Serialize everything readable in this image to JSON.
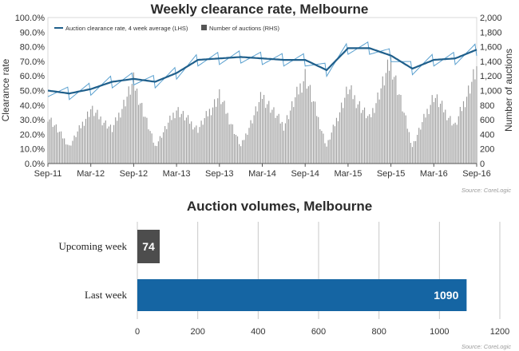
{
  "colors": {
    "line": "#1f5f8b",
    "line_raw": "#5aa0cf",
    "auction_bars": "#9a9a9a",
    "upcoming_bar": "#4d4d4d",
    "last_week_bar": "#1565a3"
  },
  "chart_data": [
    {
      "type": "line",
      "title": "Weekly clearance rate, Melbourne",
      "ylabel": "Clearance rate",
      "y2label": "Number of auctions",
      "x_ticks": [
        "Sep-11",
        "Mar-12",
        "Sep-12",
        "Mar-13",
        "Sep-13",
        "Mar-14",
        "Sep-14",
        "Mar-15",
        "Sep-15",
        "Mar-16",
        "Sep-16"
      ],
      "y_ticks": [
        "0.0%",
        "10.0%",
        "20.0%",
        "30.0%",
        "40.0%",
        "50.0%",
        "60.0%",
        "70.0%",
        "80.0%",
        "90.0%",
        "100.0%"
      ],
      "y2_ticks": [
        "0",
        "200",
        "400",
        "600",
        "800",
        "1,000",
        "1,200",
        "1,400",
        "1,600",
        "1,800",
        "2,000"
      ],
      "ylim": [
        0,
        100
      ],
      "y2lim": [
        0,
        2000
      ],
      "legend": {
        "position": "top-left",
        "line_label": "Auction clearance rate, 4 week average (LHS)",
        "bars_label": "Number of auctions (RHS)"
      },
      "source": "Source: CoreLogic",
      "series": [
        {
          "name": "Auction clearance rate, 4 week average (LHS)",
          "x": [
            "Sep-11",
            "Dec-11",
            "Mar-12",
            "Jun-12",
            "Sep-12",
            "Dec-12",
            "Mar-13",
            "Jun-13",
            "Sep-13",
            "Dec-13",
            "Mar-14",
            "Jun-14",
            "Sep-14",
            "Dec-14",
            "Mar-15",
            "Jun-15",
            "Sep-15",
            "Dec-15",
            "Mar-16",
            "Jun-16",
            "Sep-16"
          ],
          "values": [
            50,
            48,
            51,
            56,
            58,
            56,
            62,
            71,
            72,
            73,
            72,
            71,
            71,
            64,
            79,
            79,
            74,
            65,
            71,
            72,
            78
          ]
        },
        {
          "name": "Number of auctions (RHS)",
          "x": [
            "Sep-11",
            "Dec-11",
            "Mar-12",
            "Jun-12",
            "Sep-12",
            "Dec-12",
            "Mar-13",
            "Jun-13",
            "Sep-13",
            "Dec-13",
            "Mar-14",
            "Jun-14",
            "Sep-14",
            "Dec-14",
            "Mar-15",
            "Jun-15",
            "Sep-15",
            "Dec-15",
            "Mar-16",
            "Jun-16",
            "Sep-16"
          ],
          "values": [
            700,
            250,
            800,
            500,
            1200,
            250,
            800,
            500,
            1000,
            250,
            1000,
            550,
            1300,
            250,
            1100,
            650,
            1500,
            250,
            1000,
            550,
            1400
          ]
        }
      ]
    },
    {
      "type": "bar",
      "orientation": "horizontal",
      "title": "Auction volumes, Melbourne",
      "categories": [
        "Upcoming week",
        "Last week"
      ],
      "values": [
        74,
        1090
      ],
      "data_labels": [
        "74",
        "1090"
      ],
      "x_ticks": [
        "0",
        "200",
        "400",
        "600",
        "800",
        "1000",
        "1200"
      ],
      "xlim": [
        0,
        1200
      ],
      "grid": true,
      "source": "Source: CoreLogic"
    }
  ]
}
